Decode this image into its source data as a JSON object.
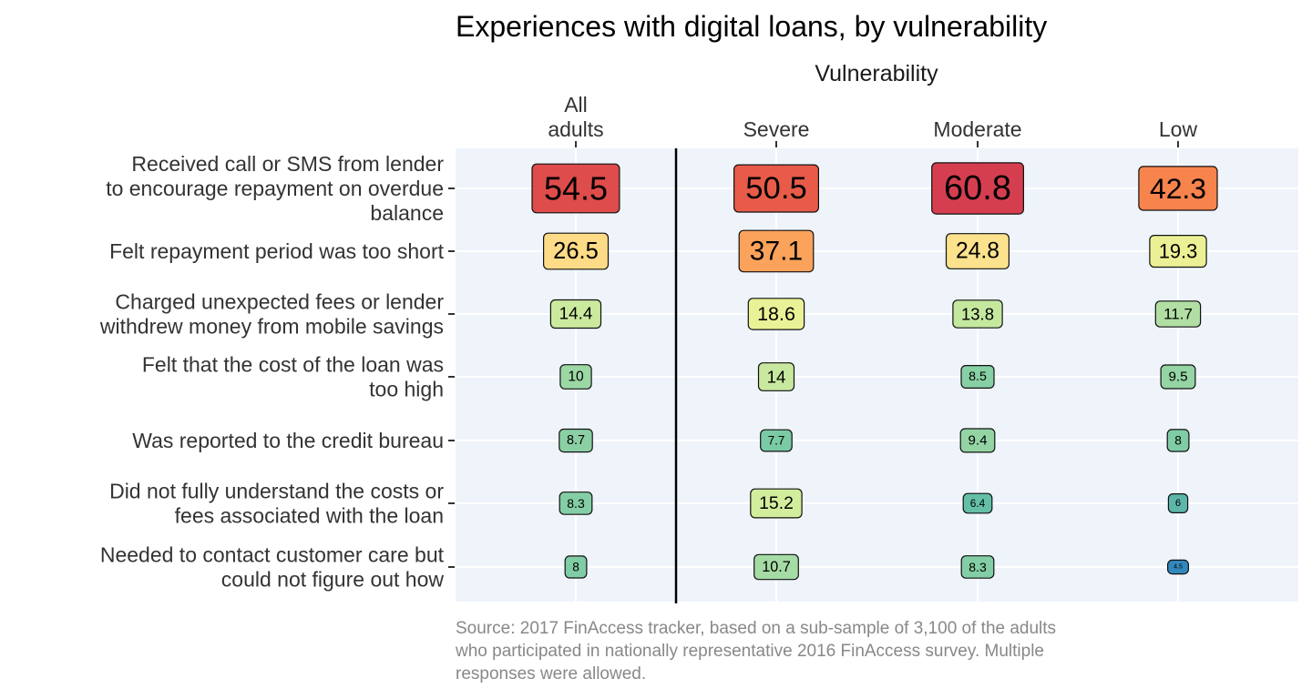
{
  "chart_data": {
    "type": "table",
    "title": "Experiences with digital loans, by vulnerability",
    "facet_label": "Vulnerability",
    "columns": [
      {
        "key": "all",
        "label_lines": [
          "All",
          "adults"
        ]
      },
      {
        "key": "severe",
        "label_lines": [
          "Severe"
        ]
      },
      {
        "key": "moderate",
        "label_lines": [
          "Moderate"
        ]
      },
      {
        "key": "low",
        "label_lines": [
          "Low"
        ]
      }
    ],
    "rows": [
      {
        "label_lines": [
          "Received call or SMS from lender",
          "to encourage repayment on overdue",
          "balance"
        ],
        "values": [
          54.5,
          50.5,
          60.8,
          42.3
        ],
        "display": [
          "54.5",
          "50.5",
          "60.8",
          "42.3"
        ]
      },
      {
        "label_lines": [
          "Felt repayment period was too short"
        ],
        "values": [
          26.5,
          37.1,
          24.8,
          19.3
        ],
        "display": [
          "26.5",
          "37.1",
          "24.8",
          "19.3"
        ]
      },
      {
        "label_lines": [
          "Charged unexpected fees or lender",
          "withdrew money from mobile savings"
        ],
        "values": [
          14.4,
          18.6,
          13.8,
          11.7
        ],
        "display": [
          "14.4",
          "18.6",
          "13.8",
          "11.7"
        ]
      },
      {
        "label_lines": [
          "Felt that the cost of the loan was",
          "too high"
        ],
        "values": [
          10,
          14,
          8.5,
          9.5
        ],
        "display": [
          "10",
          "14",
          "8.5",
          "9.5"
        ]
      },
      {
        "label_lines": [
          "Was reported to the credit bureau"
        ],
        "values": [
          8.7,
          7.7,
          9.4,
          8
        ],
        "display": [
          "8.7",
          "7.7",
          "9.4",
          "8"
        ]
      },
      {
        "label_lines": [
          "Did not fully understand the costs or",
          "fees associated with the loan"
        ],
        "values": [
          8.3,
          15.2,
          6.4,
          6
        ],
        "display": [
          "8.3",
          "15.2",
          "6.4",
          "6"
        ]
      },
      {
        "label_lines": [
          "Needed to contact customer care but",
          "could not figure out how"
        ],
        "values": [
          8,
          10.7,
          8.3,
          4.5
        ],
        "display": [
          "8",
          "10.7",
          "8.3",
          "4.5"
        ]
      }
    ],
    "color_scale": "Spectral (reversed): low values blue, high values red",
    "caption_lines": [
      "Source: 2017 FinAccess tracker, based on a sub-sample of 3,100 of the adults",
      "who participated in nationally representative 2016 FinAccess survey. Multiple",
      "responses were allowed."
    ],
    "grid": true,
    "panel_background": "#eff4fb",
    "separator_after_column": "all"
  }
}
